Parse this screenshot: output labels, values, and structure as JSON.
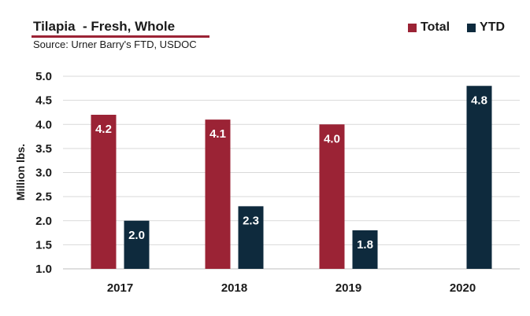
{
  "header": {
    "title": "Tilapia  - Fresh, Whole",
    "subtitle": "Source: Urner Barry's FTD, USDOC"
  },
  "colors": {
    "total": "#9b2335",
    "ytd": "#0e2a3d",
    "grid": "#d9d9d9",
    "title_underline": "#9b2335"
  },
  "chart_data": {
    "type": "bar",
    "categories": [
      "2017",
      "2018",
      "2019",
      "2020"
    ],
    "series": [
      {
        "name": "Total",
        "values": [
          4.2,
          4.1,
          4.0,
          null
        ],
        "labels": [
          "4.2",
          "4.1",
          "4.0",
          ""
        ]
      },
      {
        "name": "YTD",
        "values": [
          2.0,
          2.3,
          1.8,
          4.8
        ],
        "labels": [
          "2.0",
          "2.3",
          "1.8",
          "4.8"
        ]
      }
    ],
    "title": "Tilapia  - Fresh, Whole",
    "subtitle": "Source: Urner Barry's FTD, USDOC",
    "xlabel": "",
    "ylabel": "Million lbs.",
    "ylim": [
      1.0,
      5.0
    ],
    "yticks": [
      "1.0",
      "1.5",
      "2.0",
      "2.5",
      "3.0",
      "3.5",
      "4.0",
      "4.5",
      "5.0"
    ],
    "grid": true,
    "legend": "top-right"
  }
}
